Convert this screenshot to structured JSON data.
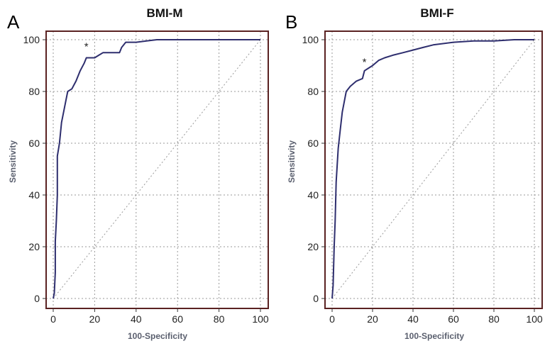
{
  "chart_data": [
    {
      "panel_letter": "A",
      "type": "line",
      "title": "BMI-M",
      "xlabel": "100-Specificity",
      "ylabel": "Sensitivity",
      "xlim": [
        0,
        100
      ],
      "ylim": [
        0,
        100
      ],
      "xticks": [
        0,
        20,
        40,
        60,
        80,
        100
      ],
      "yticks": [
        0,
        20,
        40,
        60,
        80,
        100
      ],
      "grid": true,
      "colors": {
        "curve": "#2e2e6e",
        "frame": "#5a2222",
        "grid": "#9a9a9a",
        "diagonal": "#9a9a9a"
      },
      "series": [
        {
          "values": [
            [
              0,
              0
            ],
            [
              0.5,
              2
            ],
            [
              1,
              10
            ],
            [
              1,
              22
            ],
            [
              1.5,
              30
            ],
            [
              2,
              40
            ],
            [
              2,
              55
            ],
            [
              3,
              60
            ],
            [
              4,
              68
            ],
            [
              5,
              72
            ],
            [
              6,
              76
            ],
            [
              7,
              80
            ],
            [
              9,
              81
            ],
            [
              11,
              84
            ],
            [
              13,
              88
            ],
            [
              15,
              91
            ],
            [
              16,
              93
            ],
            [
              18,
              93
            ],
            [
              20,
              93
            ],
            [
              22,
              94
            ],
            [
              24,
              95
            ],
            [
              28,
              95
            ],
            [
              32,
              95
            ],
            [
              33,
              97
            ],
            [
              35,
              99
            ],
            [
              40,
              99
            ],
            [
              45,
              99.5
            ],
            [
              50,
              100
            ],
            [
              100,
              100
            ]
          ]
        },
        {
          "values": [
            [
              0,
              0
            ],
            [
              100,
              100
            ]
          ]
        }
      ],
      "annotations": [
        {
          "text": "*",
          "x": 16,
          "y": 96
        }
      ]
    },
    {
      "panel_letter": "B",
      "type": "line",
      "title": "BMI-F",
      "xlabel": "100-Specificity",
      "ylabel": "Sensitivity",
      "xlim": [
        0,
        100
      ],
      "ylim": [
        0,
        100
      ],
      "xticks": [
        0,
        20,
        40,
        60,
        80,
        100
      ],
      "yticks": [
        0,
        20,
        40,
        60,
        80,
        100
      ],
      "grid": true,
      "colors": {
        "curve": "#2e2e6e",
        "frame": "#5a2222",
        "grid": "#9a9a9a",
        "diagonal": "#9a9a9a"
      },
      "series": [
        {
          "values": [
            [
              0,
              0
            ],
            [
              0.5,
              5
            ],
            [
              1,
              20
            ],
            [
              1.5,
              30
            ],
            [
              2,
              45
            ],
            [
              3,
              58
            ],
            [
              4,
              65
            ],
            [
              5,
              72
            ],
            [
              6,
              76
            ],
            [
              7,
              80
            ],
            [
              9,
              82
            ],
            [
              12,
              84
            ],
            [
              15,
              85
            ],
            [
              16,
              88
            ],
            [
              18,
              89
            ],
            [
              20,
              90
            ],
            [
              23,
              92
            ],
            [
              26,
              93
            ],
            [
              30,
              94
            ],
            [
              35,
              95
            ],
            [
              40,
              96
            ],
            [
              45,
              97
            ],
            [
              50,
              98
            ],
            [
              60,
              99
            ],
            [
              70,
              99.5
            ],
            [
              80,
              99.5
            ],
            [
              90,
              100
            ],
            [
              100,
              100
            ]
          ]
        },
        {
          "values": [
            [
              0,
              0
            ],
            [
              100,
              100
            ]
          ]
        }
      ],
      "annotations": [
        {
          "text": "*",
          "x": 16,
          "y": 90
        }
      ]
    }
  ]
}
